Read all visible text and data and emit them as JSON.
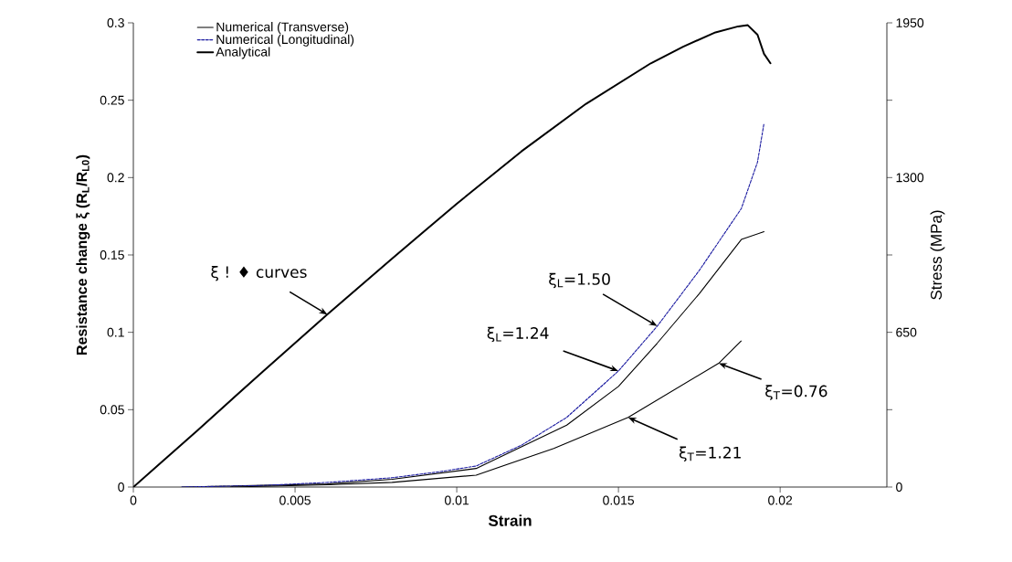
{
  "chart_data": {
    "type": "line",
    "xlabel": "Strain",
    "ylabel": "Resistance change ξ (R$_{L}$/R$_{L0}$)",
    "y2label": "Stress (MPa)",
    "xlim": [
      0,
      0.0233
    ],
    "xticks": [
      0,
      0.005,
      0.01,
      0.015,
      0.02
    ],
    "ylim": [
      0,
      0.3
    ],
    "yticks": [
      0,
      0.05,
      0.1,
      0.15,
      0.2,
      0.25,
      0.3
    ],
    "y2lim": [
      0,
      1950
    ],
    "y2ticks": [
      0,
      {
        "value": 325,
        "label": null
      },
      650,
      {
        "value": 975,
        "label": null
      },
      1300,
      {
        "value": 1625,
        "label": null
      },
      1950
    ],
    "legend": "top left",
    "series": [
      {
        "name": "Numerical (Transverse)",
        "color": "#000000",
        "line_style": "solid",
        "x": [
          0.0015,
          0.006,
          0.008,
          0.0106,
          0.0134,
          0.015,
          0.0162,
          0.0175,
          0.0188,
          0.0195
        ],
        "values": [
          0,
          0.002,
          0.005,
          0.012,
          0.04,
          0.065,
          0.093,
          0.125,
          0.16,
          0.165
        ]
      },
      {
        "name": "Numerical (Longitudinal)",
        "color": "#1a1aa0",
        "line_style": "dashed",
        "x": [
          0.0015,
          0.004,
          0.006,
          0.008,
          0.0095,
          0.0106,
          0.012,
          0.0134,
          0.015,
          0.0162,
          0.0175,
          0.0188,
          0.0193,
          0.0195
        ],
        "values": [
          0,
          0.001,
          0.003,
          0.006,
          0.01,
          0.0136,
          0.027,
          0.045,
          0.075,
          0.104,
          0.14,
          0.18,
          0.21,
          0.235
        ]
      },
      {
        "name": "Analytical",
        "color": "#000000",
        "line_style": "solid",
        "axis": "y2",
        "x": [
          0,
          0.002,
          0.004,
          0.006,
          0.008,
          0.01,
          0.012,
          0.014,
          0.016,
          0.017,
          0.018,
          0.0187,
          0.019,
          0.0193,
          0.0195,
          0.0197
        ],
        "values": [
          0,
          240,
          485,
          725,
          960,
          1190,
          1410,
          1610,
          1780,
          1850,
          1910,
          1935,
          1940,
          1900,
          1820,
          1780
        ]
      },
      {
        "color": "#000000",
        "line_style": "solid",
        "x": [
          0.003,
          0.006,
          0.008,
          0.0106,
          0.013,
          0.0153,
          0.0181,
          0.0188
        ],
        "values": [
          0,
          0.0015,
          0.003,
          0.0077,
          0.025,
          0.045,
          0.08,
          0.0945
        ]
      }
    ],
    "annotations": [
      {
        "text": "ξ ! ♦ curves",
        "x": 0.006,
        "y": 0.1115
      },
      {
        "text": "ξ$_{L}$=1.50",
        "x": 0.0162,
        "y": 0.104
      },
      {
        "text": "ξ$_{L}$=1.24",
        "x": 0.015,
        "y": 0.075
      },
      {
        "text": "ξ$_{T}$=0.76",
        "x": 0.0181,
        "y": 0.08
      },
      {
        "text": "ξ$_{T}$=1.21",
        "x": 0.0153,
        "y": 0.045
      }
    ]
  }
}
